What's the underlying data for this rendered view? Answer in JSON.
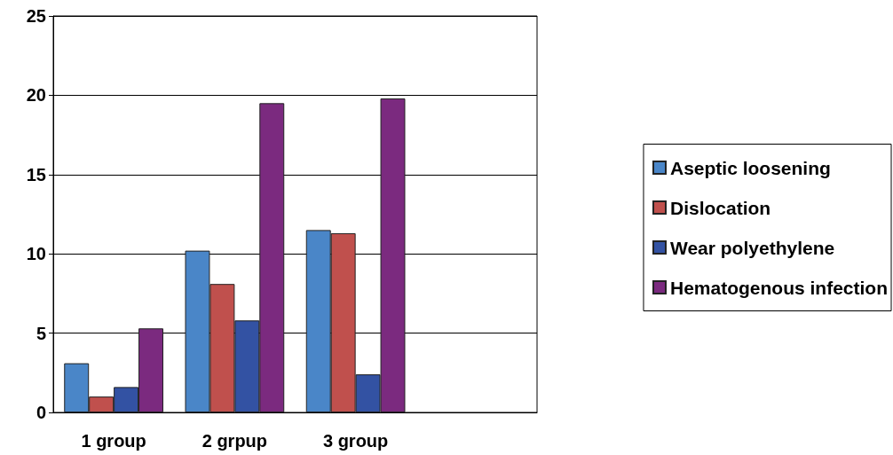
{
  "chart_data": {
    "type": "bar",
    "categories": [
      "1 group",
      "2 grpup",
      "3 group",
      null
    ],
    "series": [
      {
        "name": "Aseptic loosening",
        "color": "#4a86c8",
        "values": [
          3.1,
          10.2,
          11.5,
          null
        ]
      },
      {
        "name": "Dislocation",
        "color": "#c0504d",
        "values": [
          1,
          8.1,
          11.3,
          null
        ]
      },
      {
        "name": "Wear polyethylene",
        "color": "#3352a3",
        "values": [
          1.6,
          5.8,
          2.4,
          null
        ]
      },
      {
        "name": "Hematogenous infection",
        "color": "#7b2a7f",
        "values": [
          5.3,
          19.5,
          19.8,
          null
        ]
      }
    ],
    "ylim": [
      0,
      25
    ],
    "yticks": [
      0,
      5,
      10,
      15,
      20,
      25
    ],
    "grid": "y",
    "legend": "right"
  }
}
